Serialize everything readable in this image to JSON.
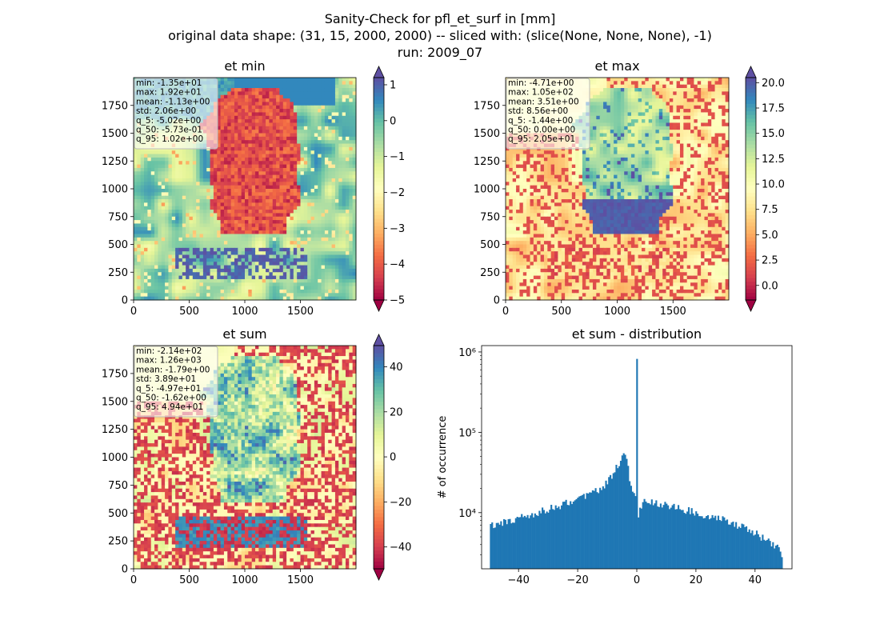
{
  "figure": {
    "title_line1": "Sanity-Check for pfl_et_surf in [mm]",
    "title_line2": "original data shape: (31, 15, 2000, 2000) -- sliced with: (slice(None, None, None), -1)",
    "title_line3": "run: 2009_07"
  },
  "colors": {
    "spectral": [
      "#9e0142",
      "#d53e4f",
      "#f46d43",
      "#fdae61",
      "#fee08b",
      "#ffffbf",
      "#e6f598",
      "#abdda4",
      "#66c2a5",
      "#3288bd",
      "#5e4fa2"
    ],
    "hist_bar": "#1f77b4"
  },
  "chart_data": [
    {
      "type": "heatmap",
      "title": "et min",
      "xticks": [
        "0",
        "500",
        "1000",
        "1500"
      ],
      "yticks": [
        "0",
        "250",
        "500",
        "750",
        "1000",
        "1250",
        "1500",
        "1750"
      ],
      "xlim": [
        0,
        2000
      ],
      "ylim": [
        0,
        2000
      ],
      "colorbar": {
        "ticks": [
          "1",
          "0",
          "−1",
          "−2",
          "−3",
          "−4",
          "−5"
        ],
        "tick_values": [
          1,
          0,
          -1,
          -2,
          -3,
          -4,
          -5
        ],
        "range": [
          -5,
          1.2
        ],
        "extend": "both"
      },
      "stats": [
        "min: -1.35e+01",
        "max: 1.92e+01",
        "mean: -1.13e+00",
        "std: 2.06e+00",
        "q_5: -5.02e+00",
        "q_50: -5.73e-01",
        "q_95: 1.02e+00"
      ]
    },
    {
      "type": "heatmap",
      "title": "et max",
      "xticks": [
        "0",
        "500",
        "1000",
        "1500"
      ],
      "yticks": [
        "0",
        "250",
        "500",
        "750",
        "1000",
        "1250",
        "1500",
        "1750"
      ],
      "xlim": [
        0,
        2000
      ],
      "ylim": [
        0,
        2000
      ],
      "colorbar": {
        "ticks": [
          "20.0",
          "17.5",
          "15.0",
          "12.5",
          "10.0",
          "7.5",
          "5.0",
          "2.5",
          "0.0"
        ],
        "tick_values": [
          20,
          17.5,
          15,
          12.5,
          10,
          7.5,
          5,
          2.5,
          0
        ],
        "range": [
          -1.44,
          20.5
        ],
        "extend": "both"
      },
      "stats": [
        "min: -4.71e+00",
        "max: 1.05e+02",
        "mean: 3.51e+00",
        "std: 8.56e+00",
        "q_5: -1.44e+00",
        "q_50: 0.00e+00",
        "q_95: 2.05e+01"
      ]
    },
    {
      "type": "heatmap",
      "title": "et sum",
      "xticks": [
        "0",
        "500",
        "1000",
        "1500"
      ],
      "yticks": [
        "0",
        "250",
        "500",
        "750",
        "1000",
        "1250",
        "1500",
        "1750"
      ],
      "xlim": [
        0,
        2000
      ],
      "ylim": [
        0,
        2000
      ],
      "colorbar": {
        "ticks": [
          "40",
          "20",
          "0",
          "−20",
          "−40"
        ],
        "tick_values": [
          40,
          20,
          0,
          -20,
          -40
        ],
        "range": [
          -49.7,
          49.4
        ],
        "extend": "both"
      },
      "stats": [
        "min: -2.14e+02",
        "max: 1.26e+03",
        "mean: -1.79e+00",
        "std: 3.89e+01",
        "q_5: -4.97e+01",
        "q_50: -1.62e+00",
        "q_95: 4.94e+01"
      ]
    },
    {
      "type": "bar",
      "title": "et sum - distribution",
      "ylabel": "# of occurrence",
      "yscale": "log",
      "xticks": [
        "−40",
        "−20",
        "0",
        "20",
        "40"
      ],
      "xtick_values": [
        -40,
        -20,
        0,
        20,
        40
      ],
      "ytick_labels": [
        "10⁴",
        "10⁵",
        "10⁶"
      ],
      "ytick_values": [
        10000,
        100000,
        1000000
      ],
      "xlim": [
        -52.5,
        52.5
      ],
      "ylim": [
        2000,
        1200000
      ],
      "anchors": {
        "x": [
          -49.7,
          -49.6,
          -48,
          -40,
          -30,
          -20,
          -12,
          -8,
          -4,
          -2,
          -1,
          -0.2,
          0.0,
          0.2,
          0.5,
          2,
          10,
          20,
          30,
          40,
          48,
          49.4,
          49.5
        ],
        "count": [
          7000,
          7000,
          7200,
          8600,
          11000,
          14500,
          20000,
          30000,
          58000,
          22000,
          16000,
          14000,
          820000,
          9500,
          9300,
          14000,
          12500,
          10000,
          8000,
          5600,
          3600,
          2800,
          2000
        ]
      }
    }
  ]
}
